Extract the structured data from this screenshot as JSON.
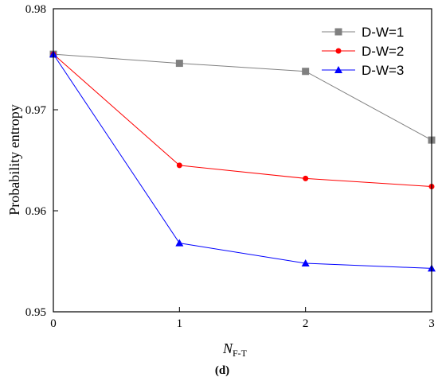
{
  "chart_data": {
    "type": "line",
    "x": [
      0,
      1,
      2,
      3
    ],
    "xlim": [
      0,
      3
    ],
    "ylim": [
      0.95,
      0.98
    ],
    "x_ticks": [
      "0",
      "1",
      "2",
      "3"
    ],
    "y_ticks": [
      "0.95",
      "0.96",
      "0.97",
      "0.98"
    ],
    "x_tick_values": [
      0,
      1,
      2,
      3
    ],
    "y_tick_values": [
      0.95,
      0.96,
      0.97,
      0.98
    ],
    "xlabel_main": "N",
    "xlabel_sub": "F-T",
    "ylabel": "Probability entropy",
    "panel_label": "(d)",
    "grid": false,
    "legend_position": "top-right",
    "series": [
      {
        "name": "D-W=1",
        "values": [
          0.9755,
          0.9746,
          0.9738,
          0.967
        ],
        "color": "#808080",
        "marker": "square"
      },
      {
        "name": "D-W=2",
        "values": [
          0.9755,
          0.9645,
          0.9632,
          0.9624
        ],
        "color": "#ff0000",
        "marker": "circle"
      },
      {
        "name": "D-W=3",
        "values": [
          0.9755,
          0.9568,
          0.9548,
          0.9543
        ],
        "color": "#0000ff",
        "marker": "triangle"
      }
    ]
  }
}
